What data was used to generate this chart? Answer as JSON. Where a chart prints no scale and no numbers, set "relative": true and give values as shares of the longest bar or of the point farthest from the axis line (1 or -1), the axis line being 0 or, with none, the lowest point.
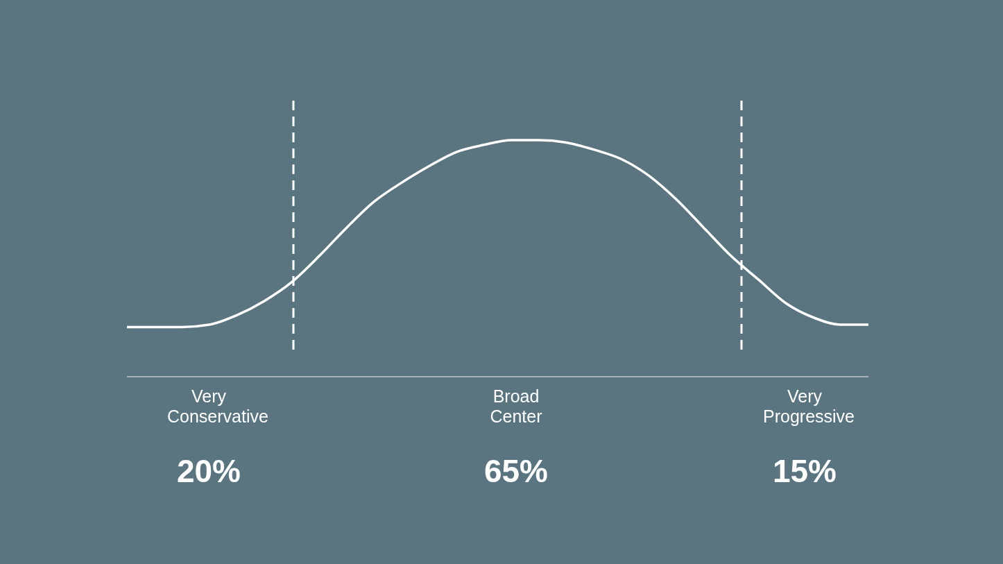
{
  "chart_data": {
    "type": "line",
    "relative": true,
    "categories": [
      null,
      null,
      null,
      null,
      null,
      null,
      null,
      null,
      null,
      null,
      null,
      null,
      null,
      null,
      null,
      null,
      null,
      null,
      null,
      null,
      null,
      null,
      null,
      null,
      null,
      null,
      null,
      null
    ],
    "series": [
      {
        "color": "#ffffff",
        "values": [
          0.21,
          0.21,
          0.21,
          0.22,
          0.26,
          0.32,
          0.4,
          0.51,
          0.63,
          0.74,
          0.82,
          0.89,
          0.95,
          0.98,
          1.0,
          1.0,
          0.99,
          0.96,
          0.92,
          0.85,
          0.75,
          0.63,
          0.51,
          0.41,
          0.31,
          0.25,
          0.22,
          0.22
        ]
      }
    ],
    "annotations": [
      "Very Conservative",
      "20%",
      "Broad Center",
      "65%",
      "Very Progressive",
      "15%"
    ],
    "marker": "none",
    "line_style": "solid",
    "grid": false,
    "legend": false
  }
}
